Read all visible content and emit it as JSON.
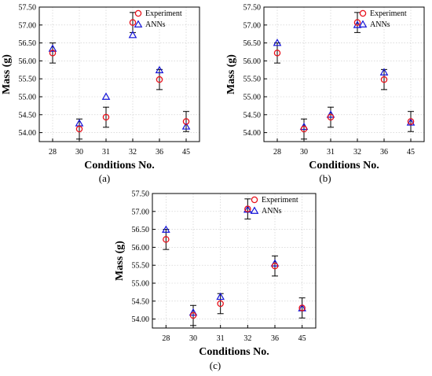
{
  "colors": {
    "experiment": "#e8101a",
    "anns": "#1414d8",
    "axis": "#000000",
    "errorbar": "#000000"
  },
  "chart_data": [
    {
      "panel": "(a)",
      "type": "scatter",
      "categories": [
        "28",
        "30",
        "31",
        "32",
        "36",
        "45"
      ],
      "xlabel": "Conditions No.",
      "ylabel": "Mass (g)",
      "ylim": [
        53.75,
        57.5
      ],
      "yticks": [
        "54.00",
        "54.50",
        "55.00",
        "55.50",
        "56.00",
        "56.50",
        "57.00",
        "57.50"
      ],
      "legend": {
        "position": "top-right"
      },
      "series": [
        {
          "name": "Experiment",
          "marker": "circle",
          "values": [
            56.22,
            54.1,
            54.43,
            57.07,
            55.48,
            54.31
          ],
          "error": [
            0.28,
            0.28,
            0.28,
            0.28,
            0.28,
            0.28
          ]
        },
        {
          "name": "ANNs",
          "marker": "triangle",
          "values": [
            56.34,
            54.26,
            55.0,
            56.72,
            55.74,
            54.17
          ]
        }
      ]
    },
    {
      "panel": "(b)",
      "type": "scatter",
      "categories": [
        "28",
        "30",
        "31",
        "32",
        "36",
        "45"
      ],
      "xlabel": "Conditions No.",
      "ylabel": "Mass (g)",
      "ylim": [
        53.75,
        57.5
      ],
      "yticks": [
        "54.00",
        "54.50",
        "55.00",
        "55.50",
        "56.00",
        "56.50",
        "57.00",
        "57.50"
      ],
      "legend": {
        "position": "top-right"
      },
      "series": [
        {
          "name": "Experiment",
          "marker": "circle",
          "values": [
            56.22,
            54.1,
            54.43,
            57.07,
            55.48,
            54.31
          ],
          "error": [
            0.28,
            0.28,
            0.28,
            0.28,
            0.28,
            0.28
          ]
        },
        {
          "name": "ANNs",
          "marker": "triangle",
          "values": [
            56.5,
            54.16,
            54.5,
            57.0,
            55.68,
            54.28
          ]
        }
      ]
    },
    {
      "panel": "(c)",
      "type": "scatter",
      "categories": [
        "28",
        "30",
        "31",
        "32",
        "36",
        "45"
      ],
      "xlabel": "Conditions No.",
      "ylabel": "Mass (g)",
      "ylim": [
        53.75,
        57.5
      ],
      "yticks": [
        "54.00",
        "54.50",
        "55.00",
        "55.50",
        "56.00",
        "56.50",
        "57.00",
        "57.50"
      ],
      "legend": {
        "position": "top-right"
      },
      "series": [
        {
          "name": "Experiment",
          "marker": "circle",
          "values": [
            56.22,
            54.1,
            54.43,
            57.07,
            55.48,
            54.31
          ],
          "error": [
            0.28,
            0.28,
            0.28,
            0.28,
            0.28,
            0.28
          ]
        },
        {
          "name": "ANNs",
          "marker": "triangle",
          "values": [
            56.49,
            54.18,
            54.62,
            57.05,
            55.55,
            54.3
          ]
        }
      ]
    }
  ]
}
